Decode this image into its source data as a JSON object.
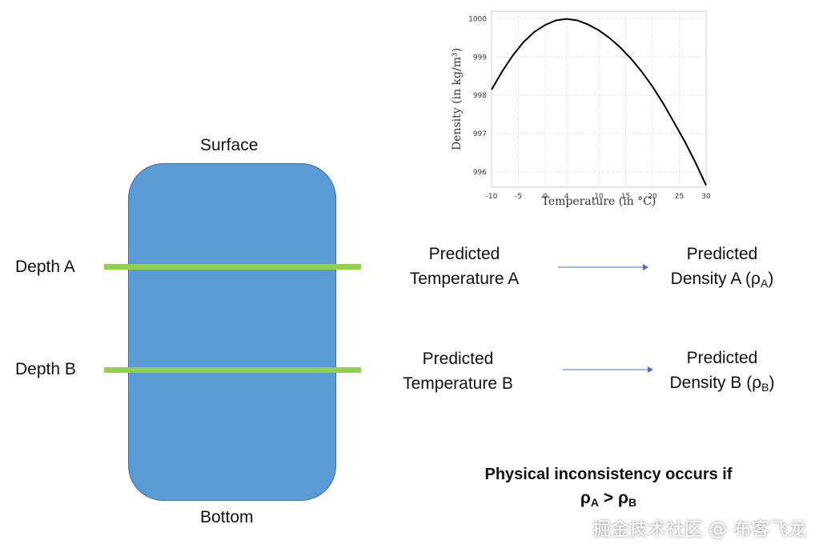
{
  "diagram": {
    "surface_label": "Surface",
    "bottom_label": "Bottom",
    "depth_a_label": "Depth A",
    "depth_b_label": "Depth B",
    "pred_temp_a": [
      "Predicted",
      "Temperature A"
    ],
    "pred_temp_b": [
      "Predicted",
      "Temperature B"
    ],
    "pred_density_a": {
      "line1": "Predicted",
      "prefix": "Density A (ρ",
      "sub": "A",
      "suffix": ")"
    },
    "pred_density_b": {
      "line1": "Predicted",
      "prefix": "Density B (ρ",
      "sub": "B",
      "suffix": ")"
    },
    "conclusion": {
      "line1": "Physical inconsistency occurs if",
      "rho": "ρ",
      "a": "A",
      "gt": " > ",
      "b": "B"
    },
    "colors": {
      "lake": "#5b9bd5",
      "depth_line": "#92d050",
      "arrow": "#4472c4"
    }
  },
  "chart_data": {
    "type": "line",
    "xlabel": "Temperature (in °C)",
    "ylabel": "Density (in kg/m³)",
    "xlim": [
      -10,
      30
    ],
    "ylim": [
      995.6,
      1000.2
    ],
    "xticks": [
      -10,
      -5,
      0,
      4,
      10,
      15,
      20,
      25,
      30
    ],
    "yticks": [
      996,
      997,
      998,
      999,
      1000
    ],
    "grid": true,
    "series": [
      {
        "x": [
          -10,
          -8,
          -6,
          -4,
          -2,
          0,
          2,
          4,
          6,
          8,
          10,
          12,
          14,
          16,
          18,
          20,
          22,
          24,
          26,
          28,
          30
        ],
        "y": [
          998.15,
          998.63,
          999.05,
          999.4,
          999.66,
          999.84,
          999.96,
          1000.0,
          999.96,
          999.85,
          999.7,
          999.5,
          999.25,
          998.96,
          998.62,
          998.23,
          997.79,
          997.3,
          996.8,
          996.25,
          995.65
        ]
      }
    ]
  },
  "watermark": "掘金技术社区 @ 布客飞龙"
}
